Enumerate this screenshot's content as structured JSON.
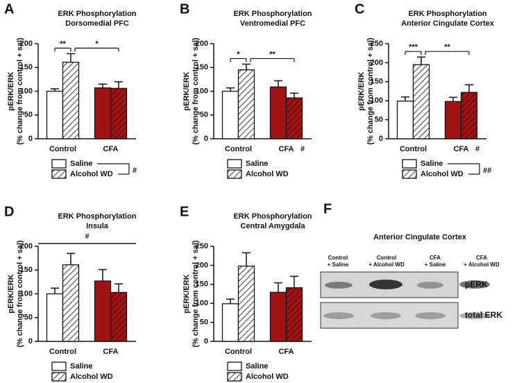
{
  "chart_data": [
    {
      "type": "bar",
      "panel": "A",
      "title": "ERK Phosphorylation",
      "subtitle": "Dorsomedial PFC",
      "ylabel": [
        "pERK/ERK",
        "(% change from control + sal)"
      ],
      "categories": [
        "Control",
        "CFA"
      ],
      "series": [
        {
          "name": "Saline",
          "colors": [
            "#ffffff",
            "#a01414"
          ],
          "hatch": false,
          "values": [
            100,
            107
          ],
          "errors": [
            5,
            8
          ]
        },
        {
          "name": "Alcohol WD",
          "colors": [
            "#ffffff",
            "#a01414"
          ],
          "hatch": true,
          "values": [
            161,
            106
          ],
          "errors": [
            18,
            14
          ]
        }
      ],
      "ylim": [
        0,
        200
      ],
      "yticks": [
        0,
        50,
        100,
        150,
        200
      ],
      "significance": [
        "**",
        "*"
      ],
      "legend_annotation": "#"
    },
    {
      "type": "bar",
      "panel": "B",
      "title": "ERK Phosphorylation",
      "subtitle": "Ventromedial PFC",
      "ylabel": [
        "pERK/ERK",
        "(% change from control + sal)"
      ],
      "categories": [
        "Control",
        "CFA"
      ],
      "series": [
        {
          "name": "Saline",
          "colors": [
            "#ffffff",
            "#a01414"
          ],
          "hatch": false,
          "values": [
            100,
            109
          ],
          "errors": [
            7,
            13
          ]
        },
        {
          "name": "Alcohol WD",
          "colors": [
            "#ffffff",
            "#a01414"
          ],
          "hatch": true,
          "values": [
            145,
            86
          ],
          "errors": [
            12,
            10
          ]
        }
      ],
      "ylim": [
        0,
        200
      ],
      "yticks": [
        0,
        50,
        100,
        150,
        200
      ],
      "significance": [
        "*",
        "**"
      ],
      "category_annotation": "#"
    },
    {
      "type": "bar",
      "panel": "C",
      "title": "ERK Phosphorylation",
      "subtitle": "Anterior Cingulate Cortex",
      "ylabel": [
        "pERK/ERK",
        "(% change from control + sal)"
      ],
      "categories": [
        "Control",
        "CFA"
      ],
      "series": [
        {
          "name": "Saline",
          "colors": [
            "#ffffff",
            "#a01414"
          ],
          "hatch": false,
          "values": [
            99,
            98
          ],
          "errors": [
            11,
            11
          ]
        },
        {
          "name": "Alcohol WD",
          "colors": [
            "#ffffff",
            "#a01414"
          ],
          "hatch": true,
          "values": [
            195,
            122
          ],
          "errors": [
            20,
            20
          ]
        }
      ],
      "ylim": [
        0,
        250
      ],
      "yticks": [
        0,
        50,
        100,
        150,
        200,
        250
      ],
      "significance": [
        "***",
        "**"
      ],
      "category_annotation": "#",
      "legend_annotation": "##"
    },
    {
      "type": "bar",
      "panel": "D",
      "title": "ERK Phosphorylation",
      "subtitle": "Insula",
      "ylabel": [
        "pERK/ERK",
        "(% change from control + sal)"
      ],
      "categories": [
        "Control",
        "CFA"
      ],
      "series": [
        {
          "name": "Saline",
          "colors": [
            "#ffffff",
            "#a01414"
          ],
          "hatch": false,
          "values": [
            100,
            127
          ],
          "errors": [
            12,
            24
          ]
        },
        {
          "name": "Alcohol WD",
          "colors": [
            "#ffffff",
            "#a01414"
          ],
          "hatch": true,
          "values": [
            161,
            103
          ],
          "errors": [
            24,
            18
          ]
        }
      ],
      "ylim": [
        0,
        200
      ],
      "yticks": [
        0,
        50,
        100,
        150,
        200
      ],
      "top_annotation": "#"
    },
    {
      "type": "bar",
      "panel": "E",
      "title": "ERK Phosphorylation",
      "subtitle": "Central Amygdala",
      "ylabel": [
        "pERK/ERK",
        "(% change from control + sal)"
      ],
      "categories": [
        "Control",
        "CFA"
      ],
      "series": [
        {
          "name": "Saline",
          "colors": [
            "#ffffff",
            "#a01414"
          ],
          "hatch": false,
          "values": [
            99,
            129
          ],
          "errors": [
            12,
            25
          ]
        },
        {
          "name": "Alcohol WD",
          "colors": [
            "#ffffff",
            "#a01414"
          ],
          "hatch": true,
          "values": [
            198,
            141
          ],
          "errors": [
            35,
            30
          ]
        }
      ],
      "ylim": [
        0,
        250
      ],
      "yticks": [
        0,
        50,
        100,
        150,
        200,
        250
      ]
    }
  ],
  "blot": {
    "panel": "F",
    "title": "Anterior Cingulate Cortex",
    "lanes": [
      [
        "Control",
        "+ Saline"
      ],
      [
        "Control",
        "+ Alcohol WD"
      ],
      [
        "CFA",
        "+ Saline"
      ],
      [
        "CFA",
        "+ Alcohol WD"
      ]
    ],
    "rows": [
      "pERK",
      "total ERK"
    ]
  }
}
